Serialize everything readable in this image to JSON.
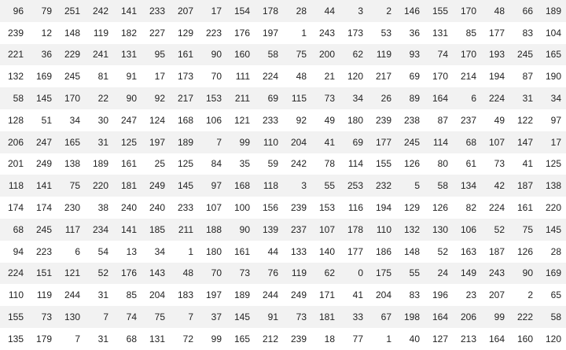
{
  "grid": {
    "rows": [
      [
        96,
        79,
        251,
        242,
        141,
        233,
        207,
        17,
        154,
        178,
        28,
        44,
        3,
        2,
        146,
        155,
        170,
        48,
        66,
        189
      ],
      [
        239,
        12,
        148,
        119,
        182,
        227,
        129,
        223,
        176,
        197,
        1,
        243,
        173,
        53,
        36,
        131,
        85,
        177,
        83,
        104
      ],
      [
        221,
        36,
        229,
        241,
        131,
        95,
        161,
        90,
        160,
        58,
        75,
        200,
        62,
        119,
        93,
        74,
        170,
        193,
        245,
        165
      ],
      [
        132,
        169,
        245,
        81,
        91,
        17,
        173,
        70,
        111,
        224,
        48,
        21,
        120,
        217,
        69,
        170,
        214,
        194,
        87,
        190
      ],
      [
        58,
        145,
        170,
        22,
        90,
        92,
        217,
        153,
        211,
        69,
        115,
        73,
        34,
        26,
        89,
        164,
        6,
        224,
        31,
        34
      ],
      [
        128,
        51,
        34,
        30,
        247,
        124,
        168,
        106,
        121,
        233,
        92,
        49,
        180,
        239,
        238,
        87,
        237,
        49,
        122,
        97
      ],
      [
        206,
        247,
        165,
        31,
        125,
        197,
        189,
        7,
        99,
        110,
        204,
        41,
        69,
        177,
        245,
        114,
        68,
        107,
        147,
        17
      ],
      [
        201,
        249,
        138,
        189,
        161,
        25,
        125,
        84,
        35,
        59,
        242,
        78,
        114,
        155,
        126,
        80,
        61,
        73,
        41,
        125
      ],
      [
        118,
        141,
        75,
        220,
        181,
        249,
        145,
        97,
        168,
        118,
        3,
        55,
        253,
        232,
        5,
        58,
        134,
        42,
        187,
        138
      ],
      [
        174,
        174,
        230,
        38,
        240,
        240,
        233,
        107,
        100,
        156,
        239,
        153,
        116,
        194,
        129,
        126,
        82,
        224,
        161,
        220
      ],
      [
        68,
        245,
        117,
        234,
        141,
        185,
        211,
        188,
        90,
        139,
        237,
        107,
        178,
        110,
        132,
        130,
        106,
        52,
        75,
        145
      ],
      [
        94,
        223,
        6,
        54,
        13,
        34,
        1,
        180,
        161,
        44,
        133,
        140,
        177,
        186,
        148,
        52,
        163,
        187,
        126,
        28
      ],
      [
        224,
        151,
        121,
        52,
        176,
        143,
        48,
        70,
        73,
        76,
        119,
        62,
        0,
        175,
        55,
        24,
        149,
        243,
        90,
        169
      ],
      [
        110,
        119,
        244,
        31,
        85,
        204,
        183,
        197,
        189,
        244,
        249,
        171,
        41,
        204,
        83,
        196,
        23,
        207,
        2,
        65
      ],
      [
        155,
        73,
        130,
        7,
        74,
        75,
        7,
        37,
        145,
        91,
        73,
        181,
        33,
        67,
        198,
        164,
        206,
        99,
        222,
        58
      ],
      [
        135,
        179,
        7,
        31,
        68,
        131,
        72,
        99,
        165,
        212,
        239,
        18,
        77,
        1,
        40,
        127,
        213,
        164,
        160,
        120
      ]
    ]
  }
}
